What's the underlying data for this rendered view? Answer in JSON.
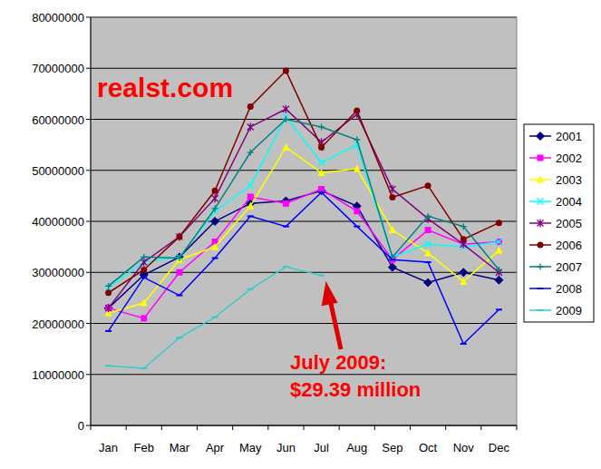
{
  "chart_data": {
    "type": "line",
    "categories": [
      "Jan",
      "Feb",
      "Mar",
      "Apr",
      "May",
      "Jun",
      "Jul",
      "Aug",
      "Sep",
      "Oct",
      "Nov",
      "Dec"
    ],
    "series": [
      {
        "name": "2001",
        "color": "#000080",
        "marker": "diamond",
        "values": [
          23000000,
          29500000,
          33000000,
          40000000,
          43500000,
          44000000,
          46000000,
          43000000,
          31000000,
          28000000,
          30000000,
          28500000
        ]
      },
      {
        "name": "2002",
        "color": "#ff00ff",
        "marker": "square",
        "values": [
          23000000,
          21000000,
          30000000,
          36000000,
          44800000,
          43500000,
          46300000,
          42000000,
          32500000,
          38300000,
          35500000,
          36000000
        ]
      },
      {
        "name": "2003",
        "color": "#ffff00",
        "marker": "triangle",
        "values": [
          22000000,
          24000000,
          32500000,
          35000000,
          43000000,
          54500000,
          49500000,
          50300000,
          38300000,
          33800000,
          28200000,
          34300000
        ]
      },
      {
        "name": "2004",
        "color": "#00ffff",
        "marker": "x",
        "values": [
          27000000,
          32000000,
          33000000,
          42000000,
          47000000,
          60500000,
          51500000,
          55000000,
          33000000,
          35500000,
          35000000,
          36000000
        ]
      },
      {
        "name": "2005",
        "color": "#800080",
        "marker": "asterisk",
        "values": [
          23000000,
          32000000,
          37000000,
          44500000,
          58500000,
          62000000,
          55500000,
          61000000,
          46300000,
          40500000,
          35500000,
          30000000
        ]
      },
      {
        "name": "2006",
        "color": "#800000",
        "marker": "circle",
        "values": [
          26000000,
          30500000,
          37000000,
          46000000,
          62500000,
          69500000,
          54500000,
          61700000,
          44700000,
          47000000,
          36500000,
          39700000
        ]
      },
      {
        "name": "2007",
        "color": "#008080",
        "marker": "plus",
        "values": [
          27300000,
          33000000,
          32800000,
          42500000,
          53500000,
          60000000,
          58500000,
          56000000,
          33000000,
          41000000,
          39000000,
          30500000
        ]
      },
      {
        "name": "2008",
        "color": "#0000ff",
        "marker": "dash",
        "values": [
          18500000,
          29000000,
          25500000,
          32800000,
          41000000,
          39000000,
          45700000,
          39000000,
          32500000,
          32000000,
          16000000,
          22700000
        ]
      },
      {
        "name": "2009",
        "color": "#33cccc",
        "marker": "dash",
        "values": [
          11700000,
          11200000,
          17200000,
          21200000,
          26700000,
          31100000,
          29390000,
          null,
          null,
          null,
          null,
          null
        ]
      }
    ],
    "ylim": [
      0,
      80000000
    ],
    "yticks": [
      0,
      10000000,
      20000000,
      30000000,
      40000000,
      50000000,
      60000000,
      70000000,
      80000000
    ],
    "grid": true,
    "legend": "right",
    "annotations": [
      "realst.com",
      "July 2009:",
      "$29.39 million"
    ]
  }
}
